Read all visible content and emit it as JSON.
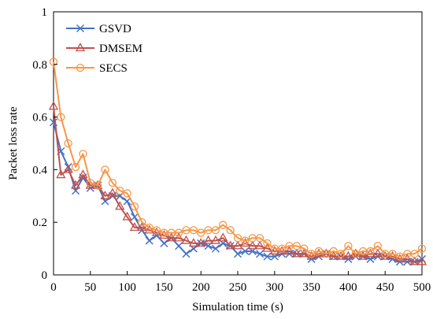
{
  "chart_data": {
    "type": "line",
    "xlabel": "Simulation time (s)",
    "ylabel": "Packet loss rate",
    "xlim": [
      0,
      500
    ],
    "ylim": [
      0,
      1
    ],
    "xticks": [
      0,
      50,
      100,
      150,
      200,
      250,
      300,
      350,
      400,
      450,
      500
    ],
    "yticks": [
      0,
      0.2,
      0.4,
      0.6,
      0.8,
      1
    ],
    "ytick_labels": [
      "0",
      "0.2",
      "0.4",
      "0.6",
      "0.8",
      "1"
    ],
    "grid": false,
    "legend_position": "top-left",
    "x": [
      0,
      10,
      20,
      30,
      40,
      50,
      60,
      70,
      80,
      90,
      100,
      110,
      120,
      130,
      140,
      150,
      160,
      170,
      180,
      190,
      200,
      210,
      220,
      230,
      240,
      250,
      260,
      270,
      280,
      290,
      300,
      310,
      320,
      330,
      340,
      350,
      360,
      370,
      380,
      390,
      400,
      410,
      420,
      430,
      440,
      450,
      460,
      470,
      480,
      490,
      500
    ],
    "series": [
      {
        "name": "GSVD",
        "color": "#4472C4",
        "marker": "x",
        "values": [
          0.58,
          0.47,
          0.41,
          0.32,
          0.37,
          0.33,
          0.34,
          0.28,
          0.3,
          0.3,
          0.28,
          0.22,
          0.17,
          0.13,
          0.15,
          0.12,
          0.14,
          0.11,
          0.08,
          0.1,
          0.12,
          0.11,
          0.1,
          0.12,
          0.11,
          0.08,
          0.09,
          0.09,
          0.08,
          0.07,
          0.07,
          0.08,
          0.08,
          0.08,
          0.08,
          0.06,
          0.07,
          0.08,
          0.07,
          0.07,
          0.06,
          0.07,
          0.07,
          0.06,
          0.07,
          0.07,
          0.06,
          0.05,
          0.05,
          0.05,
          0.06
        ]
      },
      {
        "name": "DMSEM",
        "color": "#C0504D",
        "marker": "triangle",
        "values": [
          0.64,
          0.38,
          0.4,
          0.34,
          0.38,
          0.34,
          0.34,
          0.3,
          0.31,
          0.26,
          0.22,
          0.18,
          0.18,
          0.17,
          0.16,
          0.15,
          0.14,
          0.14,
          0.13,
          0.12,
          0.12,
          0.13,
          0.13,
          0.14,
          0.11,
          0.11,
          0.12,
          0.11,
          0.11,
          0.1,
          0.09,
          0.09,
          0.09,
          0.08,
          0.08,
          0.07,
          0.08,
          0.08,
          0.07,
          0.07,
          0.07,
          0.08,
          0.07,
          0.08,
          0.08,
          0.07,
          0.07,
          0.06,
          0.06,
          0.05,
          0.05
        ]
      },
      {
        "name": "SECS",
        "color": "#F79646",
        "marker": "circle",
        "values": [
          0.81,
          0.6,
          0.5,
          0.41,
          0.46,
          0.35,
          0.34,
          0.4,
          0.35,
          0.32,
          0.31,
          0.26,
          0.2,
          0.18,
          0.17,
          0.16,
          0.16,
          0.16,
          0.17,
          0.17,
          0.16,
          0.17,
          0.17,
          0.19,
          0.17,
          0.14,
          0.13,
          0.14,
          0.14,
          0.12,
          0.1,
          0.1,
          0.11,
          0.11,
          0.1,
          0.08,
          0.09,
          0.08,
          0.09,
          0.08,
          0.11,
          0.08,
          0.09,
          0.09,
          0.11,
          0.08,
          0.08,
          0.07,
          0.08,
          0.08,
          0.1
        ]
      }
    ]
  }
}
